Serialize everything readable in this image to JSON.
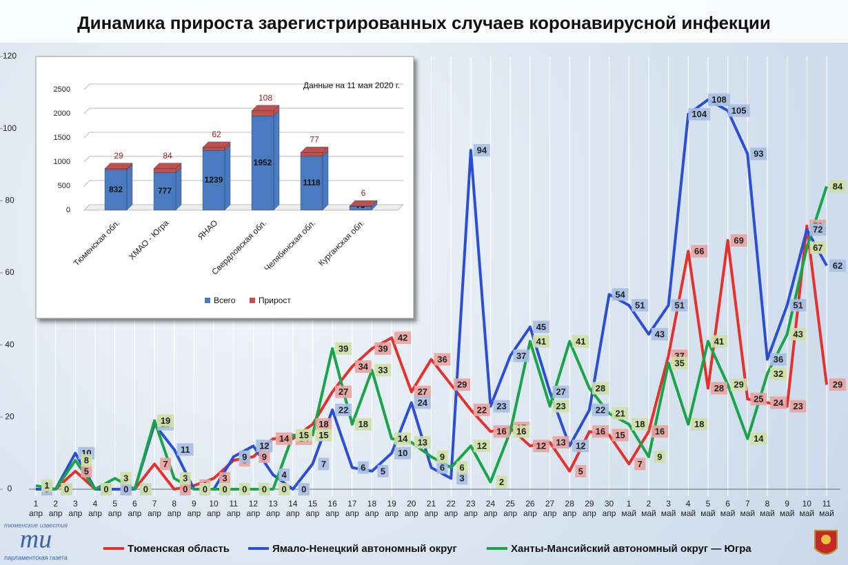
{
  "chart_data": [
    {
      "type": "line",
      "title": "Динамика прироста зарегистрированных случаев коронавирусной инфекции",
      "categories": [
        "1 апр",
        "2 апр",
        "3 апр",
        "4 апр",
        "5 апр",
        "6 апр",
        "7 апр",
        "8 апр",
        "9 апр",
        "10 апр",
        "11 апр",
        "12 апр",
        "13 апр",
        "14 апр",
        "15 апр",
        "16 апр",
        "17 апр",
        "18 апр",
        "19 апр",
        "20 апр",
        "21 апр",
        "22 апр",
        "23 апр",
        "24 апр",
        "25 апр",
        "26 апр",
        "27 апр",
        "28 апр",
        "29 апр",
        "30 апр",
        "1 май",
        "2 май",
        "3 май",
        "4 май",
        "5 май",
        "6 май",
        "7 май",
        "8 май",
        "9 май",
        "10 май",
        "11 май"
      ],
      "series": [
        {
          "name": "Тюменская область",
          "color": "#e5302b",
          "label_color": "#e9a3a0",
          "values": [
            0,
            0,
            5,
            0,
            0,
            0,
            7,
            0,
            1,
            3,
            8,
            9,
            14,
            14,
            18,
            27,
            34,
            39,
            42,
            27,
            36,
            29,
            22,
            16,
            17,
            12,
            13,
            5,
            16,
            15,
            7,
            16,
            37,
            66,
            28,
            69,
            25,
            24,
            23,
            73,
            29
          ]
        },
        {
          "name": "Ямало-Ненецкий автономный округ",
          "color": "#2a4fd6",
          "label_color": "#a6bfe3",
          "values": [
            0,
            0,
            10,
            0,
            0,
            0,
            18,
            11,
            0,
            0,
            9,
            12,
            4,
            0,
            7,
            22,
            6,
            5,
            10,
            24,
            6,
            3,
            94,
            23,
            37,
            45,
            27,
            12,
            22,
            54,
            51,
            43,
            51,
            104,
            108,
            105,
            93,
            36,
            51,
            72,
            62
          ]
        },
        {
          "name": "Ханты-Мансийский автономный округ — Югра",
          "color": "#18a548",
          "label_color": "#cfe0a3",
          "values": [
            1,
            0,
            8,
            0,
            3,
            0,
            19,
            3,
            0,
            0,
            0,
            0,
            0,
            15,
            15,
            39,
            18,
            33,
            14,
            13,
            9,
            6,
            12,
            2,
            16,
            41,
            23,
            41,
            28,
            21,
            18,
            9,
            35,
            18,
            41,
            29,
            14,
            32,
            43,
            67,
            84
          ]
        }
      ],
      "ylim": [
        0,
        120
      ],
      "yticks": [
        0,
        20,
        40,
        60,
        80,
        100,
        120
      ],
      "grid": true
    },
    {
      "type": "bar",
      "stacked": true,
      "annotation": "Данные на 11 мая 2020 г.",
      "categories": [
        "Тюменская обл.",
        "ХМАО - Югра",
        "ЯНАО",
        "Свердловская обл.",
        "Челябинская обл.",
        "Курганская обл."
      ],
      "series": [
        {
          "name": "Всего",
          "color": "#4a7bc1",
          "values": [
            832,
            777,
            1239,
            1952,
            1118,
            79
          ]
        },
        {
          "name": "Прирост",
          "color": "#c0504d",
          "values": [
            29,
            84,
            62,
            108,
            77,
            6
          ]
        }
      ],
      "ylim": [
        0,
        2500
      ],
      "yticks": [
        0,
        500,
        1000,
        1500,
        2000,
        2500
      ],
      "grid": true
    }
  ],
  "logo": {
    "top": "тюменские известия",
    "mark": "ти",
    "bottom": "парламентская газета"
  }
}
